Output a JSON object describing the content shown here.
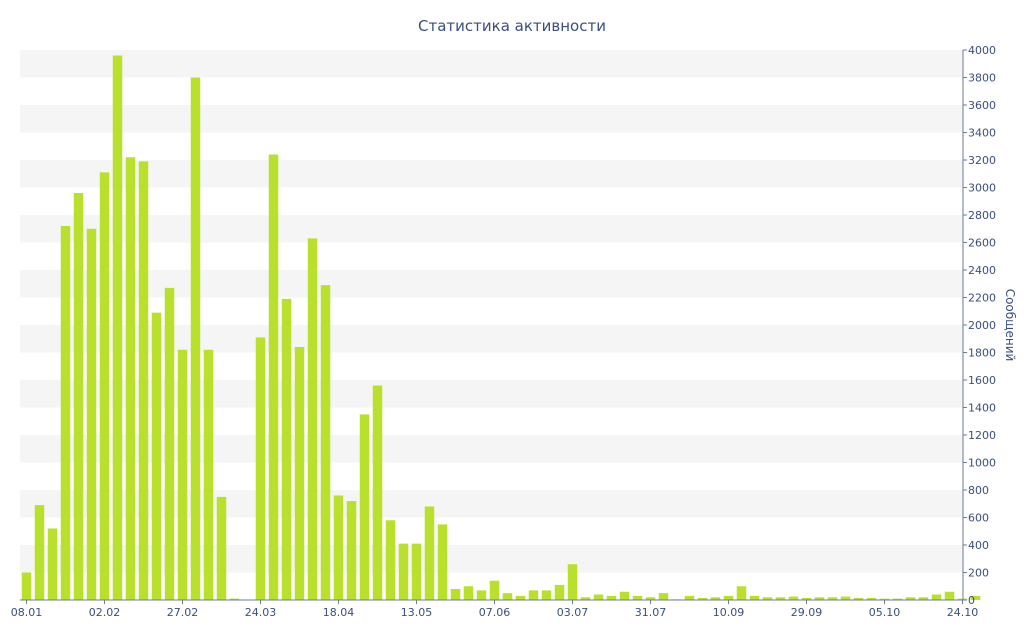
{
  "chart_data": {
    "type": "bar",
    "title": "Статистика активности",
    "xlabel": "",
    "ylabel": "Сообщений",
    "ylim": [
      0,
      4000
    ],
    "y_ticks": [
      0,
      200,
      400,
      600,
      800,
      1000,
      1200,
      1400,
      1600,
      1800,
      2000,
      2200,
      2400,
      2600,
      2800,
      3000,
      3200,
      3400,
      3600,
      3800,
      4000
    ],
    "y_axis_side": "right",
    "x_tick_labels": [
      {
        "label": "08.01",
        "index": 0
      },
      {
        "label": "02.02",
        "index": 6
      },
      {
        "label": "27.02",
        "index": 12
      },
      {
        "label": "24.03",
        "index": 18
      },
      {
        "label": "18.04",
        "index": 24
      },
      {
        "label": "13.05",
        "index": 30
      },
      {
        "label": "07.06",
        "index": 36
      },
      {
        "label": "03.07",
        "index": 42
      },
      {
        "label": "31.07",
        "index": 48
      },
      {
        "label": "10.09",
        "index": 54
      },
      {
        "label": "29.09",
        "index": 60
      },
      {
        "label": "05.10",
        "index": 66
      },
      {
        "label": "24.10",
        "index": 72
      }
    ],
    "values": [
      200,
      690,
      520,
      2720,
      2960,
      2700,
      3110,
      3960,
      3220,
      3190,
      2090,
      2270,
      1820,
      3800,
      1820,
      750,
      10,
      0,
      1910,
      3240,
      2190,
      1840,
      2630,
      2290,
      760,
      720,
      1350,
      1560,
      580,
      410,
      410,
      680,
      550,
      80,
      100,
      70,
      140,
      50,
      30,
      70,
      70,
      110,
      260,
      20,
      40,
      30,
      60,
      30,
      20,
      50,
      5,
      30,
      15,
      20,
      30,
      100,
      30,
      20,
      20,
      25,
      15,
      20,
      20,
      25,
      15,
      15,
      10,
      10,
      20,
      20,
      40,
      60,
      10,
      30
    ],
    "grid": "horizontal-bands",
    "colors": {
      "bar": "#b9e02c",
      "band": "#f5f5f5",
      "text": "#3a4f7a",
      "axis": "#6b7a9a"
    }
  }
}
